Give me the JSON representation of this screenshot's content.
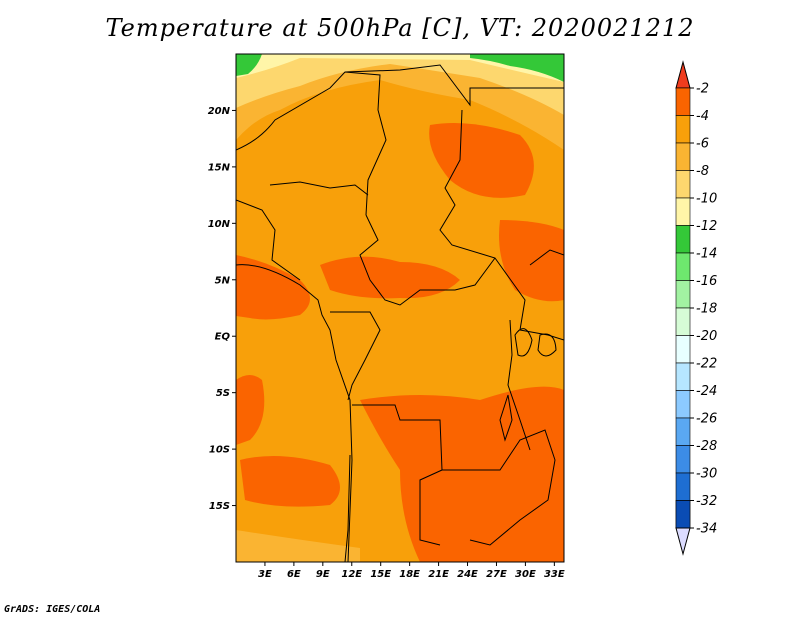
{
  "title": "Temperature at 500hPa [C], VT: 2020021212",
  "footer": "GrADS: IGES/COLA",
  "map": {
    "lon_range": [
      0,
      34
    ],
    "lat_range": [
      -20,
      25
    ],
    "lat_ticks": [
      {
        "value": 20,
        "label": "20N"
      },
      {
        "value": 15,
        "label": "15N"
      },
      {
        "value": 10,
        "label": "10N"
      },
      {
        "value": 5,
        "label": "5N"
      },
      {
        "value": 0,
        "label": "EQ"
      },
      {
        "value": -5,
        "label": "5S"
      },
      {
        "value": -10,
        "label": "10S"
      },
      {
        "value": -15,
        "label": "15S"
      }
    ],
    "lon_ticks": [
      {
        "value": 3,
        "label": "3E"
      },
      {
        "value": 6,
        "label": "6E"
      },
      {
        "value": 9,
        "label": "9E"
      },
      {
        "value": 12,
        "label": "12E"
      },
      {
        "value": 15,
        "label": "15E"
      },
      {
        "value": 18,
        "label": "18E"
      },
      {
        "value": 21,
        "label": "21E"
      },
      {
        "value": 24,
        "label": "24E"
      },
      {
        "value": 27,
        "label": "27E"
      },
      {
        "value": 30,
        "label": "30E"
      },
      {
        "value": 33,
        "label": "33E"
      }
    ],
    "base_fill_color": "#f8a00a"
  },
  "colorbar": {
    "levels": [
      {
        "label": "-2",
        "color": "#fa6400"
      },
      {
        "label": "-4",
        "color": "#f8a00a"
      },
      {
        "label": "-6",
        "color": "#fab432"
      },
      {
        "label": "-8",
        "color": "#fdd76e"
      },
      {
        "label": "-10",
        "color": "#fff5a8"
      },
      {
        "label": "-12",
        "color": "#34c838"
      },
      {
        "label": "-14",
        "color": "#6ee86e"
      },
      {
        "label": "-16",
        "color": "#a2f2a2"
      },
      {
        "label": "-18",
        "color": "#d6fcd6"
      },
      {
        "label": "-20",
        "color": "#e8ffff"
      },
      {
        "label": "-22",
        "color": "#b6e6ff"
      },
      {
        "label": "-24",
        "color": "#8ccaff"
      },
      {
        "label": "-26",
        "color": "#5aa8f2"
      },
      {
        "label": "-28",
        "color": "#3c8ce6"
      },
      {
        "label": "-30",
        "color": "#1e6ed2"
      },
      {
        "label": "-32",
        "color": "#0a4cb4"
      },
      {
        "label": "-34",
        "color": "#0a1478"
      }
    ],
    "top_color": "#f03c1e",
    "bottom_color": "#dcdcff"
  },
  "legend_colors": {
    "warm_top": "#f03c1e",
    "light_bottom": "#dcdcff"
  }
}
